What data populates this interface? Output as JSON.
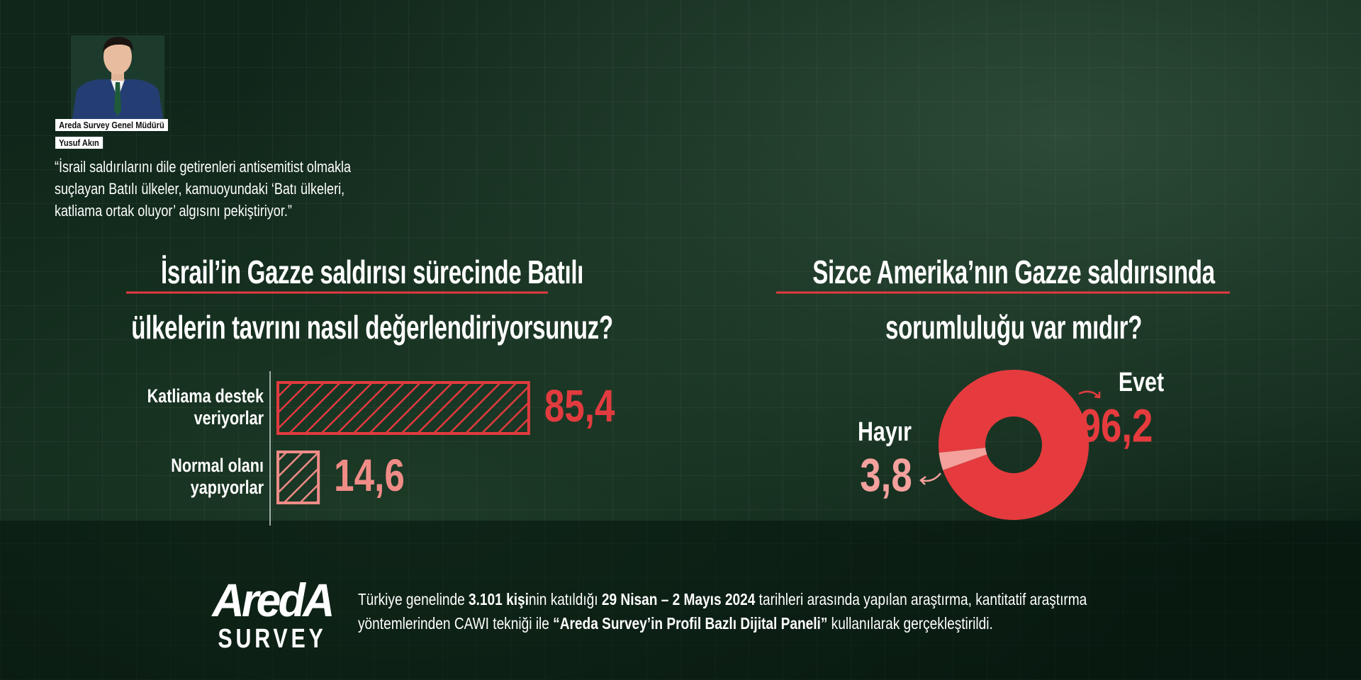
{
  "header": {
    "role": "Areda Survey Genel Müdürü",
    "name": "Yusuf Akın",
    "quote": "“İsrail saldırılarını dile getirenleri antisemitist olmakla suçlayan Batılı ülkeler, kamuoyundaki ‘Batı ülkeleri, katliama ortak oluyor’ algısını pekiştiriyor.”"
  },
  "chart_data": [
    {
      "type": "bar",
      "title": "İsrail’in Gazze saldırısı sürecinde Batılı ülkelerin tavrını nasıl değerlendiriyorsunuz?",
      "categories": [
        "Katliama destek veriyorlar",
        "Normal olanı yapıyorlar"
      ],
      "values": [
        85.4,
        14.6
      ],
      "value_labels": [
        "85,4",
        "14,6"
      ],
      "colors": [
        "#e23b3f",
        "#f08c87"
      ]
    },
    {
      "type": "donut",
      "title": "Sizce Amerika’nın Gazze saldırısında sorumluluğu var mıdır?",
      "categories": [
        "Evet",
        "Hayır"
      ],
      "values": [
        96.2,
        3.8
      ],
      "value_labels": [
        "96,2",
        "3,8"
      ],
      "colors": [
        "#e63b3e",
        "#f4a19d"
      ]
    }
  ],
  "footer": {
    "logo": "AredA",
    "logo_sub": "SURVEY",
    "text": [
      "Türkiye genelinde ",
      "3.101 kişi",
      "nin katıldığı ",
      "29 Nisan – 2 Mayıs 2024",
      " tarihleri arasında yapılan araştırma, kantitatif araştırma yöntemlerinden CAWI tekniği ile ",
      "“Areda Survey’in Profil Bazlı Dijital Paneli”",
      " kullanılarak gerçekleştirildi."
    ]
  }
}
